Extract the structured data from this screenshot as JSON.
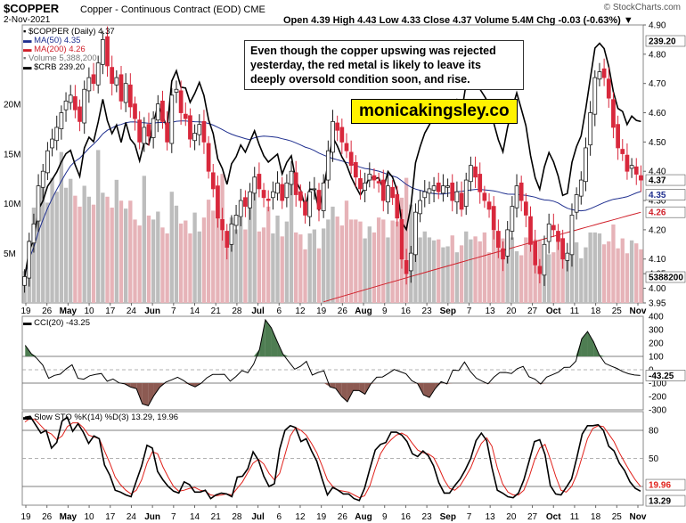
{
  "header": {
    "symbol": "$COPPER",
    "description": "Copper - Continuous Contract (EOD)",
    "exchange": "CME",
    "date": "2-Nov-2021",
    "stats": "Open 4.39  High 4.43  Low 4.33  Close 4.37  Volume 5.4M  Chg -0.03 (-0.63%) ▼",
    "brand": "© StockCharts.com"
  },
  "annotation": "Even though the copper upswing was rejected yesterday, the red metal is likely to leave its deeply oversold condition soon, and rise.",
  "watermark": "monicakingsley.co",
  "colors": {
    "up": "#1a1a1a",
    "down": "#d8283c",
    "ma50": "#1f2f8f",
    "ma200": "#d0202a",
    "crb": "#000000",
    "vol_up": "#bdbdbd",
    "vol_down": "#e6b3b8",
    "cci_pos": "#4e7d52",
    "cci_neg": "#8c5a52",
    "sto_k": "#000000",
    "sto_d": "#e0201a"
  },
  "chart_data": [
    {
      "type": "candlestick",
      "title": "$COPPER (Daily) 4.37",
      "legend": [
        {
          "name": "$COPPER (Daily) 4.37",
          "color": "#1a1a1a"
        },
        {
          "name": "MA(50) 4.35",
          "color": "#1f2f8f"
        },
        {
          "name": "MA(200) 4.26",
          "color": "#d0202a"
        },
        {
          "name": "Volume 5,388,200",
          "color": "#bdbdbd"
        },
        {
          "name": "$CRB 239.20",
          "color": "#000000"
        }
      ],
      "ylim": [
        3.95,
        4.9
      ],
      "y_ticks": [
        "4.90",
        "4.80",
        "4.70",
        "4.60",
        "4.50",
        "4.40",
        "4.30",
        "4.20",
        "4.10",
        "4.05",
        "4.00",
        "3.95"
      ],
      "volume_ticks": [
        "20M",
        "15M",
        "10M",
        "5M"
      ],
      "right_labels": {
        "crb": "239.20",
        "close": "4.37",
        "ma50": "4.35",
        "ma200": "4.26",
        "volume": "5388200"
      },
      "x_ticks": [
        "19",
        "26",
        "May",
        "10",
        "17",
        "24",
        "Jun",
        "7",
        "14",
        "21",
        "28",
        "Jul",
        "6",
        "12",
        "19",
        "26",
        "Aug",
        "9",
        "16",
        "23",
        "Sep",
        "7",
        "13",
        "20",
        "27",
        "Oct",
        "11",
        "18",
        "25",
        "Nov"
      ],
      "series": [
        {
          "name": "$COPPER",
          "close": [
            4.04,
            4.16,
            4.22,
            4.35,
            4.4,
            4.47,
            4.51,
            4.55,
            4.6,
            4.64,
            4.66,
            4.61,
            4.57,
            4.68,
            4.72,
            4.7,
            4.77,
            4.85,
            4.76,
            4.7,
            4.72,
            4.64,
            4.7,
            4.62,
            4.58,
            4.5,
            4.55,
            4.52,
            4.58,
            4.63,
            4.57,
            4.5,
            4.66,
            4.68,
            4.6,
            4.58,
            4.51,
            4.53,
            4.56,
            4.5,
            4.4,
            4.34,
            4.24,
            4.2,
            4.14,
            4.22,
            4.25,
            4.3,
            4.28,
            4.33,
            4.38,
            4.34,
            4.31,
            4.3,
            4.33,
            4.36,
            4.3,
            4.36,
            4.4,
            4.32,
            4.3,
            4.25,
            4.33,
            4.34,
            4.27,
            4.36,
            4.47,
            4.57,
            4.54,
            4.5,
            4.47,
            4.42,
            4.38,
            4.34,
            4.36,
            4.39,
            4.37,
            4.36,
            4.3,
            4.35,
            4.31,
            4.24,
            4.1,
            4.05,
            4.12,
            4.26,
            4.3,
            4.33,
            4.34,
            4.35,
            4.33,
            4.35,
            4.35,
            4.3,
            4.33,
            4.27,
            4.37,
            4.42,
            4.38,
            4.33,
            4.3,
            4.27,
            4.2,
            4.14,
            4.1,
            4.2,
            4.28,
            4.35,
            4.3,
            4.25,
            4.15,
            4.08,
            4.05,
            4.15,
            4.22,
            4.2,
            4.16,
            4.1,
            4.12,
            4.25,
            4.32,
            4.37,
            4.48,
            4.6,
            4.72,
            4.74,
            4.72,
            4.65,
            4.55,
            4.48,
            4.46,
            4.4,
            4.42,
            4.39,
            4.37
          ]
        },
        {
          "name": "Volume (M)",
          "values": [
            3.2,
            6.3,
            9.6,
            8.8,
            12.2,
            10.1,
            12.6,
            11.2,
            15.2,
            11.6,
            12.5,
            10.8,
            9.7,
            11.8,
            10.7,
            9.9,
            15.4,
            11.1,
            10.7,
            9.6,
            12.4,
            10.3,
            9.5,
            10.3,
            8.4,
            7.8,
            12.8,
            8.8,
            8.4,
            9.2,
            7.6,
            7.0,
            11.2,
            9.8,
            8.0,
            8.3,
            7.0,
            9.1,
            7.2,
            8.6,
            10.4,
            9.3,
            9.8,
            13.0,
            6.8,
            8.6,
            7.4,
            8.6,
            7.4,
            10.0,
            11.8,
            7.2,
            7.6,
            9.7,
            7.0,
            8.8,
            6.7,
            8.2,
            12.9,
            7.1,
            6.9,
            5.4,
            7.0,
            7.4,
            5.5,
            7.5,
            8.4,
            9.7,
            8.7,
            7.8,
            10.3,
            8.4,
            8.4,
            8.2,
            6.5,
            7.7,
            7.1,
            8.6,
            8.4,
            6.6,
            8.3,
            8.2,
            10.6,
            12.6,
            9.9,
            6.9,
            6.6,
            7.2,
            6.6,
            6.3,
            6.4,
            5.6,
            5.7,
            6.8,
            5.1,
            5.8,
            7.2,
            6.4,
            6.7,
            6.2,
            7.1,
            5.1,
            7.3,
            5.9,
            6.5,
            5.6,
            6.6,
            5.2,
            4.8,
            6.6,
            6.2,
            6.4,
            6.3,
            5.3,
            4.9,
            5.1,
            6.2,
            5.8,
            4.8,
            6.1,
            6.1,
            4.5,
            5.6,
            7.1,
            7.1,
            7.0,
            5.9,
            6.2,
            7.9,
            5.5,
            6.5,
            5.0,
            6.3,
            6.0,
            5.4
          ]
        }
      ]
    },
    {
      "type": "line",
      "title": "CCI(20) -43.25",
      "ylim": [
        -300,
        400
      ],
      "y_ticks": [
        "400",
        "300",
        "200",
        "100",
        "0",
        "-100",
        "-200",
        "-300"
      ],
      "current_label": "-43.25",
      "series": [
        {
          "name": "CCI(20)",
          "values": [
            183,
            122,
            85,
            35,
            -64,
            -42,
            -33,
            7,
            37,
            -64,
            -71,
            -45,
            -35,
            -28,
            -86,
            -69,
            -98,
            -106,
            -129,
            -142,
            -255,
            -269,
            -192,
            -130,
            -93,
            -75,
            -56,
            -79,
            -109,
            -128,
            -102,
            -61,
            -35,
            -35,
            -34,
            -85,
            -50,
            -6,
            -23,
            42,
            153,
            374,
            314,
            214,
            117,
            59,
            4,
            26,
            63,
            -40,
            -20,
            -8,
            -127,
            -140,
            -199,
            -239,
            -155,
            -156,
            -183,
            -106,
            -56,
            -54,
            -27,
            2,
            -14,
            -30,
            -82,
            -104,
            -187,
            -207,
            -140,
            -89,
            -106,
            -3,
            -6,
            58,
            -13,
            -63,
            -85,
            -105,
            -56,
            -21,
            -20,
            -28,
            8,
            25,
            -53,
            -70,
            -107,
            -55,
            -37,
            -18,
            17,
            19,
            64,
            233,
            286,
            211,
            111,
            47,
            28,
            10,
            -14,
            -30,
            -39,
            -43
          ]
        }
      ]
    },
    {
      "type": "line",
      "title": "Slow STO %K(14) %D(3) 13.29, 19.96",
      "ylim": [
        0,
        100
      ],
      "y_ticks": [
        "80",
        "50",
        "20"
      ],
      "current_labels": {
        "d": "19.96",
        "k": "13.29"
      },
      "series": [
        {
          "name": "%K",
          "values": [
            94,
            95,
            86,
            77,
            80,
            61,
            67,
            90,
            94,
            79,
            87,
            78,
            66,
            74,
            71,
            43,
            32,
            16,
            14,
            11,
            9,
            26,
            42,
            64,
            61,
            36,
            27,
            20,
            15,
            13,
            25,
            22,
            14,
            14,
            16,
            7,
            11,
            13,
            12,
            9,
            30,
            31,
            39,
            57,
            48,
            31,
            20,
            23,
            60,
            80,
            85,
            83,
            68,
            71,
            58,
            47,
            28,
            11,
            19,
            16,
            12,
            12,
            7,
            5,
            18,
            39,
            59,
            65,
            67,
            78,
            78,
            75,
            68,
            55,
            52,
            58,
            53,
            42,
            24,
            13,
            13,
            21,
            28,
            38,
            50,
            69,
            77,
            69,
            40,
            16,
            13,
            9,
            8,
            13,
            27,
            47,
            68,
            70,
            54,
            21,
            12,
            11,
            19,
            28,
            51,
            76,
            85,
            85,
            86,
            80,
            63,
            58,
            45,
            37,
            25,
            18,
            15
          ]
        },
        {
          "name": "%D",
          "values": [
            89,
            93,
            91,
            85,
            79,
            76,
            70,
            74,
            84,
            88,
            88,
            83,
            75,
            73,
            71,
            58,
            45,
            30,
            22,
            16,
            12,
            16,
            27,
            45,
            57,
            55,
            41,
            30,
            20,
            15,
            16,
            18,
            19,
            16,
            15,
            11,
            10,
            11,
            12,
            11,
            18,
            25,
            35,
            45,
            49,
            44,
            34,
            27,
            34,
            54,
            74,
            83,
            80,
            75,
            66,
            56,
            42,
            27,
            20,
            16,
            15,
            14,
            11,
            8,
            10,
            21,
            39,
            55,
            64,
            70,
            75,
            77,
            74,
            66,
            59,
            56,
            55,
            51,
            40,
            27,
            18,
            16,
            21,
            30,
            40,
            54,
            66,
            72,
            63,
            40,
            23,
            14,
            11,
            11,
            16,
            30,
            48,
            61,
            65,
            49,
            31,
            16,
            14,
            20,
            33,
            52,
            71,
            82,
            85,
            84,
            76,
            68,
            56,
            46,
            36,
            27,
            20
          ]
        }
      ]
    }
  ]
}
